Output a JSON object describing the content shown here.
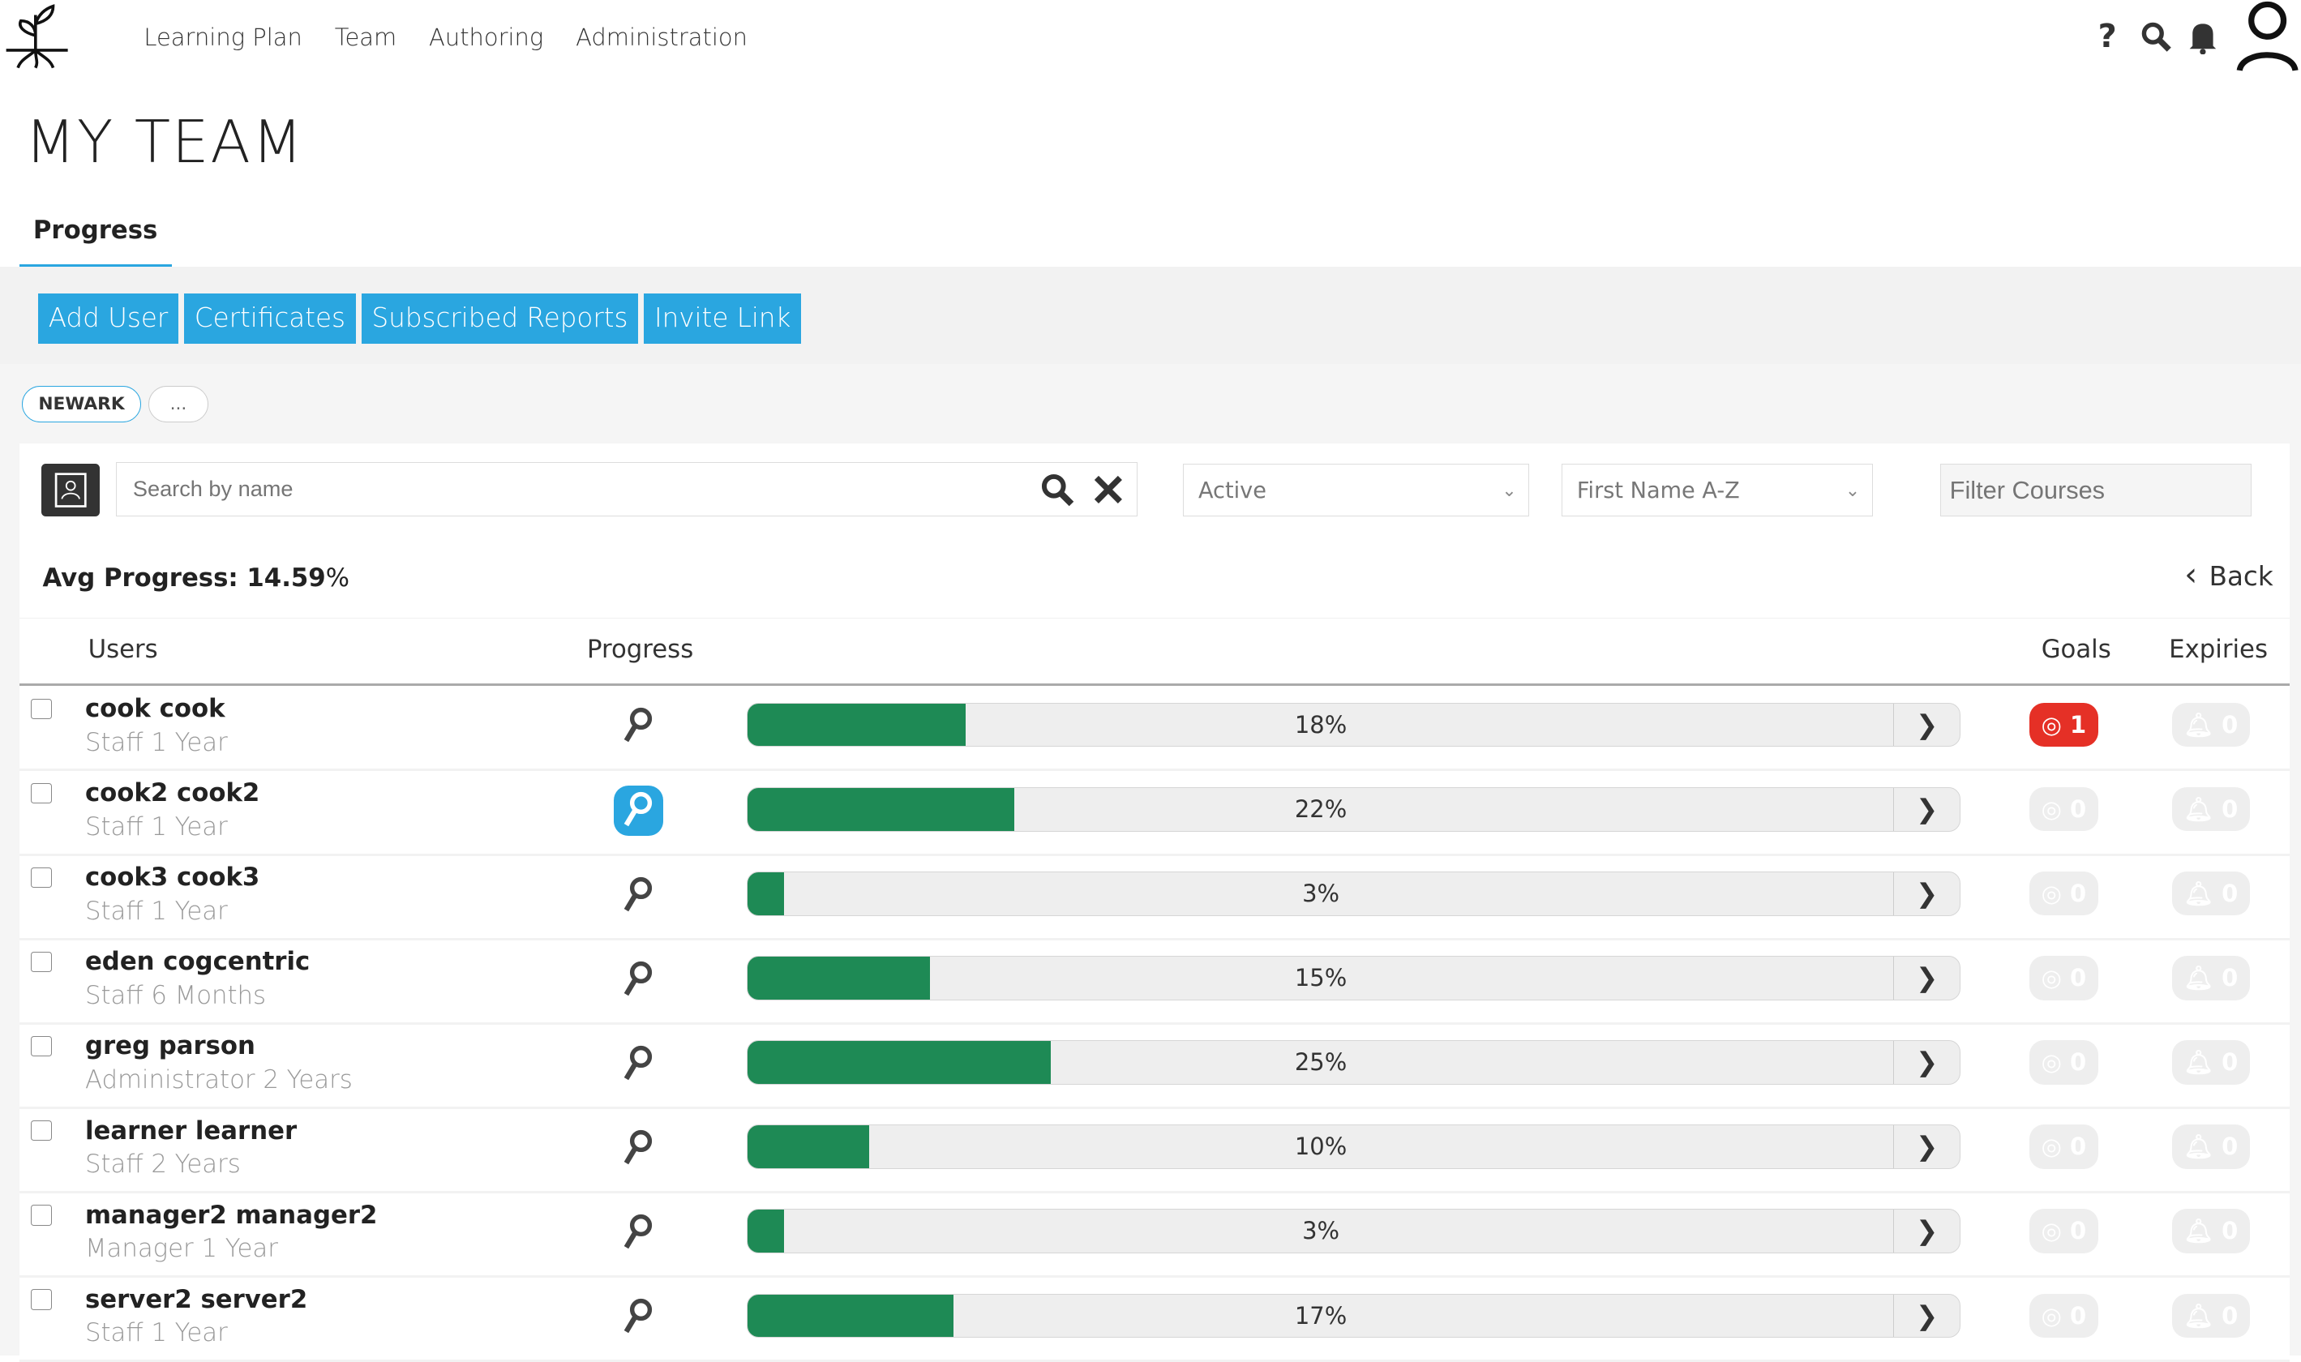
{
  "nav": {
    "items": [
      "Learning Plan",
      "Team",
      "Authoring",
      "Administration"
    ],
    "icons": [
      "help-icon",
      "search-icon",
      "bell-icon",
      "user-icon"
    ]
  },
  "page_title": "MY TEAM",
  "tab": "Progress",
  "buttons": [
    "Add User",
    "Certificates",
    "Subscribed Reports",
    "Invite Link"
  ],
  "breadcrumb": [
    "NEWARK",
    "..."
  ],
  "search": {
    "placeholder": "Search by name"
  },
  "status_filter": "Active",
  "sort_filter": "First Name A-Z",
  "filter_courses": {
    "placeholder": "Filter Courses"
  },
  "avg_progress": {
    "label": "Avg Progress: 14.59",
    "unit": "%"
  },
  "back": "Back",
  "columns": {
    "users": "Users",
    "progress": "Progress",
    "goals": "Goals",
    "expiries": "Expiries"
  },
  "colors": {
    "accent": "#2aa6e0",
    "progress": "#1e8a55",
    "goal_alert": "#e53026"
  },
  "rows": [
    {
      "name": "cook cook",
      "role": "Staff 1 Year",
      "progress": 18,
      "progress_label": "18%",
      "goals": "1",
      "expiries": "0",
      "goal_alert": true,
      "key_active": false
    },
    {
      "name": "cook2 cook2",
      "role": "Staff 1 Year",
      "progress": 22,
      "progress_label": "22%",
      "goals": "0",
      "expiries": "0",
      "goal_alert": false,
      "key_active": true
    },
    {
      "name": "cook3 cook3",
      "role": "Staff 1 Year",
      "progress": 3,
      "progress_label": "3%",
      "goals": "0",
      "expiries": "0",
      "goal_alert": false,
      "key_active": false
    },
    {
      "name": "eden cogcentric",
      "role": "Staff 6 Months",
      "progress": 15,
      "progress_label": "15%",
      "goals": "0",
      "expiries": "0",
      "goal_alert": false,
      "key_active": false
    },
    {
      "name": "greg parson",
      "role": "Administrator 2 Years",
      "progress": 25,
      "progress_label": "25%",
      "goals": "0",
      "expiries": "0",
      "goal_alert": false,
      "key_active": false
    },
    {
      "name": "learner learner",
      "role": "Staff 2 Years",
      "progress": 10,
      "progress_label": "10%",
      "goals": "0",
      "expiries": "0",
      "goal_alert": false,
      "key_active": false
    },
    {
      "name": "manager2 manager2",
      "role": "Manager 1 Year",
      "progress": 3,
      "progress_label": "3%",
      "goals": "0",
      "expiries": "0",
      "goal_alert": false,
      "key_active": false
    },
    {
      "name": "server2 server2",
      "role": "Staff 1 Year",
      "progress": 17,
      "progress_label": "17%",
      "goals": "0",
      "expiries": "0",
      "goal_alert": false,
      "key_active": false
    }
  ]
}
